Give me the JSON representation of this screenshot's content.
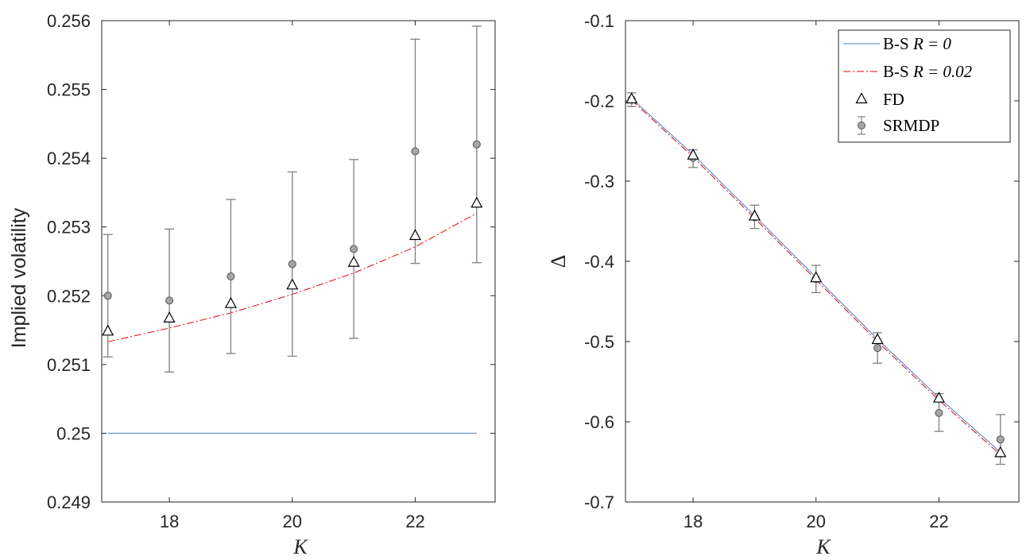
{
  "chart_data": [
    {
      "type": "scatter",
      "ylabel": "Implied volatility",
      "xlabel": "K",
      "xlim": [
        16.9,
        23.3
      ],
      "ylim": [
        0.249,
        0.256
      ],
      "xticks": [
        18,
        20,
        22
      ],
      "yticks": [
        0.249,
        0.25,
        0.251,
        0.252,
        0.253,
        0.254,
        0.255,
        0.256
      ],
      "ytick_labels": [
        "0.249",
        "0.25",
        "0.251",
        "0.252",
        "0.253",
        "0.254",
        "0.255",
        "0.256"
      ],
      "grid": false,
      "series": [
        {
          "name": "B-S R = 0",
          "kind": "line",
          "style": "solid",
          "color": "#4a7fc1",
          "x": [
            17,
            18,
            19,
            20,
            21,
            22,
            23
          ],
          "y": [
            0.25,
            0.25,
            0.25,
            0.25,
            0.25,
            0.25,
            0.25
          ]
        },
        {
          "name": "B-S R = 0.02",
          "kind": "line",
          "style": "dashdot",
          "color": "#e8000b",
          "x": [
            17,
            18,
            19,
            20,
            21,
            22,
            23
          ],
          "y": [
            0.25133,
            0.25153,
            0.25175,
            0.25202,
            0.25233,
            0.25271,
            0.2532
          ]
        },
        {
          "name": "FD",
          "kind": "triangle",
          "x": [
            17,
            18,
            19,
            20,
            21,
            22,
            23
          ],
          "y": [
            0.25148,
            0.25167,
            0.25188,
            0.25215,
            0.25248,
            0.25287,
            0.25334
          ]
        },
        {
          "name": "SRMDP",
          "kind": "errorbar",
          "x": [
            17,
            18,
            19,
            20,
            21,
            22,
            23
          ],
          "y": [
            0.252,
            0.25193,
            0.25228,
            0.25246,
            0.25268,
            0.2541,
            0.2542
          ],
          "ylow": [
            0.25111,
            0.25089,
            0.25116,
            0.25112,
            0.25138,
            0.25247,
            0.25248
          ],
          "yhigh": [
            0.25289,
            0.25297,
            0.2534,
            0.2538,
            0.25398,
            0.25573,
            0.25592
          ]
        }
      ]
    },
    {
      "type": "scatter",
      "ylabel": "Δ",
      "xlabel": "K",
      "xlim": [
        16.9,
        23.3
      ],
      "ylim": [
        -0.7,
        -0.1
      ],
      "xticks": [
        18,
        20,
        22
      ],
      "yticks": [
        -0.7,
        -0.6,
        -0.5,
        -0.4,
        -0.3,
        -0.2,
        -0.1
      ],
      "ytick_labels": [
        "-0.7",
        "-0.6",
        "-0.5",
        "-0.4",
        "-0.3",
        "-0.2",
        "-0.1"
      ],
      "grid": false,
      "legend": {
        "position": "top-right",
        "entries": [
          {
            "prefix": "B-S ",
            "math": "R = 0"
          },
          {
            "prefix": "B-S ",
            "math": "R = 0.02"
          },
          {
            "prefix": "FD",
            "math": ""
          },
          {
            "prefix": "SRMDP",
            "math": ""
          }
        ]
      },
      "series": [
        {
          "name": "B-S R = 0",
          "kind": "line",
          "style": "solid",
          "color": "#4a7fc1",
          "x": [
            17,
            18,
            19,
            20,
            21,
            22,
            23
          ],
          "y": [
            -0.197,
            -0.267,
            -0.343,
            -0.42,
            -0.497,
            -0.57,
            -0.638
          ]
        },
        {
          "name": "B-S R = 0.02",
          "kind": "line",
          "style": "dashdot",
          "color": "#e8000b",
          "x": [
            17,
            18,
            19,
            20,
            21,
            22,
            23
          ],
          "y": [
            -0.199,
            -0.27,
            -0.346,
            -0.423,
            -0.5,
            -0.573,
            -0.641
          ]
        },
        {
          "name": "FD",
          "kind": "triangle",
          "x": [
            17,
            18,
            19,
            20,
            21,
            22,
            23
          ],
          "y": [
            -0.198,
            -0.268,
            -0.344,
            -0.421,
            -0.498,
            -0.571,
            -0.639
          ]
        },
        {
          "name": "SRMDP",
          "kind": "errorbar",
          "x": [
            17,
            18,
            19,
            20,
            21,
            22,
            23
          ],
          "y": [
            -0.198,
            -0.271,
            -0.345,
            -0.422,
            -0.508,
            -0.589,
            -0.622
          ],
          "ylow": [
            -0.207,
            -0.283,
            -0.359,
            -0.439,
            -0.527,
            -0.612,
            -0.653
          ],
          "yhigh": [
            -0.19,
            -0.261,
            -0.33,
            -0.405,
            -0.489,
            -0.565,
            -0.591
          ]
        }
      ]
    }
  ]
}
